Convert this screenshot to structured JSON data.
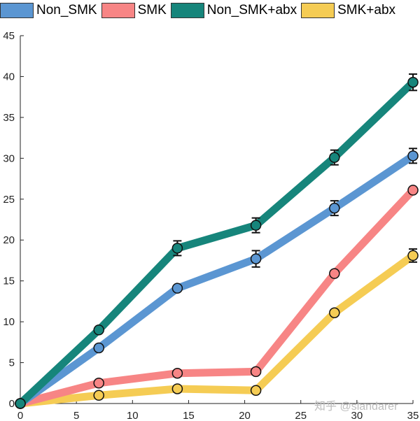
{
  "chart_data": {
    "type": "line",
    "x": [
      0,
      7,
      14,
      21,
      28,
      35
    ],
    "xlim": [
      0,
      35
    ],
    "ylim": [
      0,
      45
    ],
    "xticks": [
      0,
      5,
      10,
      15,
      20,
      25,
      30,
      35
    ],
    "yticks": [
      0,
      5,
      10,
      15,
      20,
      25,
      30,
      35,
      40,
      45
    ],
    "grid": false,
    "legend_placement": "top",
    "series": [
      {
        "name": "Non_SMK",
        "color": "#5b96d2",
        "values": [
          0,
          6.8,
          14.1,
          17.7,
          23.9,
          30.3
        ],
        "error": [
          0,
          0,
          0,
          1.0,
          0.9,
          0.9
        ]
      },
      {
        "name": "SMK",
        "color": "#f78585",
        "values": [
          0,
          2.5,
          3.7,
          3.9,
          15.9,
          26.1
        ],
        "error": [
          0,
          0,
          0,
          0,
          0,
          0
        ]
      },
      {
        "name": "Non_SMK+abx",
        "color": "#16857b",
        "values": [
          0,
          9.0,
          19.0,
          21.8,
          30.1,
          39.3
        ],
        "error": [
          0,
          0,
          0.9,
          0.9,
          0.9,
          1.0
        ]
      },
      {
        "name": "SMK+abx",
        "color": "#f5cc54",
        "values": [
          0,
          1.0,
          1.8,
          1.6,
          11.1,
          18.1
        ],
        "error": [
          0,
          0,
          0,
          0,
          0,
          0.8
        ]
      }
    ],
    "draw_order": [
      3,
      1,
      0,
      2
    ]
  },
  "watermark": "知乎 @slandarer"
}
